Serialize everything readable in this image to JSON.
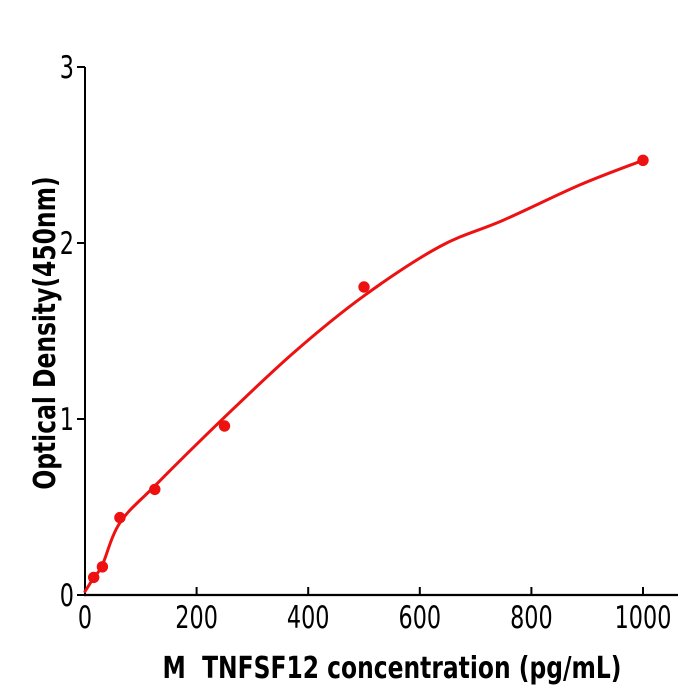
{
  "figure": {
    "background": "#ffffff",
    "axis_color": "#000000",
    "accent_color": "#ed1111"
  },
  "chart_data": {
    "type": "scatter",
    "title": "",
    "xlabel": "M  TNFSF12 concentration (pg/mL)",
    "ylabel": "Optical Density(450nm)",
    "xlim": [
      0,
      1063
    ],
    "ylim": [
      0,
      3
    ],
    "x_ticks": [
      "0",
      "200",
      "400",
      "600",
      "800",
      "1000"
    ],
    "x_tick_values": [
      0,
      200,
      400,
      600,
      800,
      1000
    ],
    "y_ticks": [
      "0",
      "1",
      "2",
      "3"
    ],
    "y_tick_values": [
      0,
      1,
      2,
      3
    ],
    "grid": false,
    "legend": null,
    "series": [
      {
        "name": "standard-points",
        "type": "scatter",
        "color": "#ed1111",
        "marker": "circle",
        "x": [
          15.6,
          31.2,
          62.5,
          125,
          250,
          500,
          1000
        ],
        "y": [
          0.1,
          0.16,
          0.44,
          0.6,
          0.96,
          1.75,
          2.47
        ]
      },
      {
        "name": "fit-curve",
        "type": "line",
        "color": "#ed1111",
        "width": 3,
        "points": [
          [
            0,
            0.02
          ],
          [
            16,
            0.1
          ],
          [
            31,
            0.17
          ],
          [
            62.5,
            0.41
          ],
          [
            125,
            0.62
          ],
          [
            250,
            1.01
          ],
          [
            375,
            1.38
          ],
          [
            500,
            1.7
          ],
          [
            636,
            1.98
          ],
          [
            750,
            2.13
          ],
          [
            887,
            2.33
          ],
          [
            1000,
            2.47
          ]
        ]
      }
    ]
  }
}
